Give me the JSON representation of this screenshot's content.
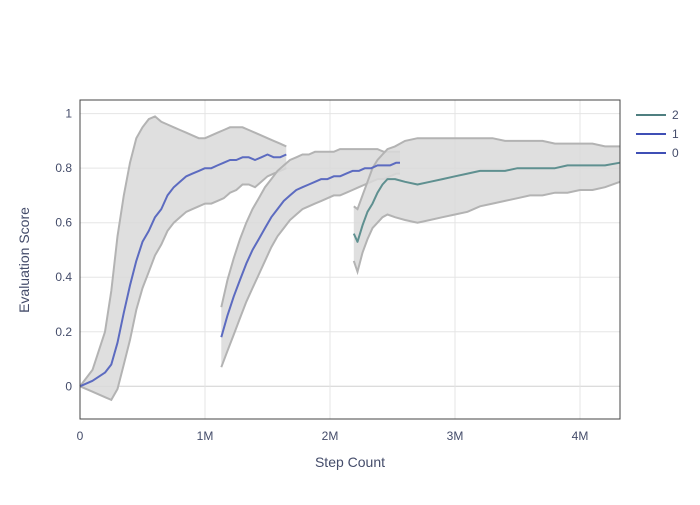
{
  "chart_data": {
    "type": "line",
    "xlabel": "Step Count",
    "ylabel": "Evaluation Score",
    "xlim": [
      0,
      4320000
    ],
    "ylim": [
      -0.12,
      1.05
    ],
    "x_ticks": [
      {
        "value": 0,
        "label": "0"
      },
      {
        "value": 1000000,
        "label": "1M"
      },
      {
        "value": 2000000,
        "label": "2M"
      },
      {
        "value": 3000000,
        "label": "3M"
      },
      {
        "value": 4000000,
        "label": "4M"
      }
    ],
    "y_ticks": [
      {
        "value": 0,
        "label": "0"
      },
      {
        "value": 0.2,
        "label": "0.2"
      },
      {
        "value": 0.4,
        "label": "0.4"
      },
      {
        "value": 0.6,
        "label": "0.6"
      },
      {
        "value": 0.8,
        "label": "0.8"
      },
      {
        "value": 1,
        "label": "1"
      }
    ],
    "grid": true,
    "legend_position": "top-right",
    "band_color": "#d9d9d9",
    "band_edge_color": "#b3b3b3",
    "series": [
      {
        "name": "0",
        "color": "#5c6bc0",
        "legend_color": "#3f4fb5",
        "x": [
          0,
          100000,
          200000,
          250000,
          300000,
          350000,
          400000,
          450000,
          500000,
          550000,
          600000,
          650000,
          700000,
          750000,
          800000,
          850000,
          900000,
          950000,
          1000000,
          1050000,
          1100000,
          1150000,
          1200000,
          1250000,
          1300000,
          1350000,
          1400000,
          1450000,
          1500000,
          1550000,
          1600000,
          1650000
        ],
        "y": [
          0.0,
          0.02,
          0.05,
          0.08,
          0.16,
          0.27,
          0.37,
          0.46,
          0.53,
          0.57,
          0.62,
          0.65,
          0.7,
          0.73,
          0.75,
          0.77,
          0.78,
          0.79,
          0.8,
          0.8,
          0.81,
          0.82,
          0.83,
          0.83,
          0.84,
          0.84,
          0.83,
          0.84,
          0.85,
          0.84,
          0.84,
          0.85
        ],
        "lower": [
          0.0,
          -0.02,
          -0.04,
          -0.05,
          -0.01,
          0.08,
          0.17,
          0.28,
          0.36,
          0.42,
          0.48,
          0.52,
          0.57,
          0.6,
          0.62,
          0.64,
          0.65,
          0.66,
          0.67,
          0.67,
          0.68,
          0.69,
          0.71,
          0.72,
          0.74,
          0.74,
          0.73,
          0.75,
          0.77,
          0.78,
          0.79,
          0.8
        ],
        "upper": [
          0.0,
          0.06,
          0.2,
          0.35,
          0.55,
          0.7,
          0.82,
          0.91,
          0.95,
          0.98,
          0.99,
          0.97,
          0.96,
          0.95,
          0.94,
          0.93,
          0.92,
          0.91,
          0.91,
          0.92,
          0.93,
          0.94,
          0.95,
          0.95,
          0.95,
          0.94,
          0.93,
          0.92,
          0.91,
          0.9,
          0.89,
          0.88
        ]
      },
      {
        "name": "1",
        "color": "#5c6bc0",
        "legend_color": "#3f4fb5",
        "x": [
          1130000,
          1180000,
          1230000,
          1280000,
          1330000,
          1380000,
          1430000,
          1480000,
          1530000,
          1580000,
          1630000,
          1680000,
          1730000,
          1780000,
          1830000,
          1880000,
          1930000,
          1980000,
          2030000,
          2080000,
          2130000,
          2180000,
          2230000,
          2280000,
          2330000,
          2380000,
          2430000,
          2480000,
          2530000,
          2560000
        ],
        "y": [
          0.18,
          0.26,
          0.33,
          0.39,
          0.45,
          0.5,
          0.54,
          0.58,
          0.62,
          0.65,
          0.68,
          0.7,
          0.72,
          0.73,
          0.74,
          0.75,
          0.76,
          0.76,
          0.77,
          0.77,
          0.78,
          0.79,
          0.79,
          0.8,
          0.8,
          0.81,
          0.81,
          0.81,
          0.82,
          0.82
        ],
        "lower": [
          0.07,
          0.13,
          0.19,
          0.25,
          0.31,
          0.36,
          0.41,
          0.46,
          0.51,
          0.55,
          0.58,
          0.61,
          0.63,
          0.65,
          0.66,
          0.67,
          0.68,
          0.69,
          0.7,
          0.7,
          0.71,
          0.72,
          0.73,
          0.74,
          0.75,
          0.76,
          0.76,
          0.77,
          0.78,
          0.78
        ],
        "upper": [
          0.29,
          0.39,
          0.47,
          0.54,
          0.6,
          0.65,
          0.69,
          0.73,
          0.76,
          0.79,
          0.81,
          0.83,
          0.84,
          0.85,
          0.85,
          0.86,
          0.86,
          0.86,
          0.86,
          0.87,
          0.87,
          0.87,
          0.87,
          0.87,
          0.87,
          0.87,
          0.86,
          0.86,
          0.86,
          0.86
        ]
      },
      {
        "name": "2",
        "color": "#5f9090",
        "legend_color": "#4f7f80",
        "x": [
          2190000,
          2220000,
          2260000,
          2300000,
          2340000,
          2380000,
          2420000,
          2460000,
          2520000,
          2600000,
          2700000,
          2800000,
          2900000,
          3000000,
          3100000,
          3200000,
          3300000,
          3400000,
          3500000,
          3600000,
          3700000,
          3800000,
          3900000,
          4000000,
          4100000,
          4200000,
          4320000
        ],
        "y": [
          0.56,
          0.53,
          0.59,
          0.64,
          0.67,
          0.71,
          0.74,
          0.76,
          0.76,
          0.75,
          0.74,
          0.75,
          0.76,
          0.77,
          0.78,
          0.79,
          0.79,
          0.79,
          0.8,
          0.8,
          0.8,
          0.8,
          0.81,
          0.81,
          0.81,
          0.81,
          0.82
        ],
        "lower": [
          0.46,
          0.42,
          0.49,
          0.54,
          0.58,
          0.6,
          0.62,
          0.63,
          0.62,
          0.61,
          0.6,
          0.61,
          0.62,
          0.63,
          0.64,
          0.66,
          0.67,
          0.68,
          0.69,
          0.7,
          0.7,
          0.71,
          0.71,
          0.72,
          0.72,
          0.73,
          0.75
        ],
        "upper": [
          0.66,
          0.65,
          0.7,
          0.75,
          0.8,
          0.83,
          0.85,
          0.87,
          0.88,
          0.9,
          0.91,
          0.91,
          0.91,
          0.91,
          0.91,
          0.91,
          0.91,
          0.9,
          0.9,
          0.9,
          0.9,
          0.89,
          0.89,
          0.89,
          0.89,
          0.88,
          0.88
        ]
      }
    ],
    "legend_order": [
      "2",
      "1",
      "0"
    ]
  }
}
